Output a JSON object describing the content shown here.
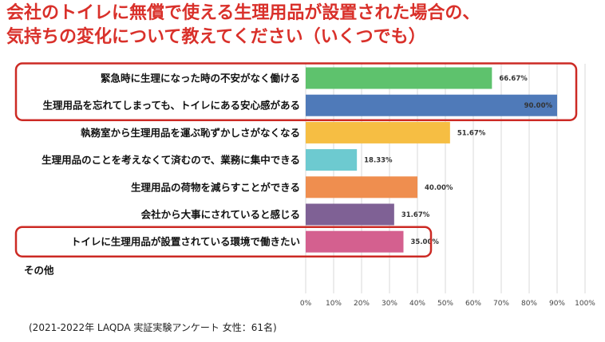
{
  "title": {
    "line1": "会社のトイレに無償で使える生理用品が設置された場合の、",
    "line2": "気持ちの変化について教えてください（いくつでも）"
  },
  "footnote": "(2021-2022年 LAQDA 実証実験アンケート 女性：61名)",
  "colors": {
    "title": "#d9302a",
    "highlight_box": "#cc2a24",
    "grid": "#d9d9d9"
  },
  "chart_data": {
    "type": "bar",
    "orientation": "horizontal",
    "categories": [
      "緊急時に生理になった時の不安がなく働ける",
      "生理用品を忘れてしまっても、トイレにある安心感がある",
      "執務室から生理用品を運ぶ恥ずかしさがなくなる",
      "生理用品のことを考えなくて済むので、業務に集中できる",
      "生理用品の荷物を減らすことができる",
      "会社から大事にされていると感じる",
      "トイレに生理用品が設置されている環境で働きたい",
      "その他"
    ],
    "values": [
      66.67,
      90.0,
      51.67,
      18.33,
      40.0,
      31.67,
      35.0,
      0
    ],
    "value_labels": [
      "66.67%",
      "90.00%",
      "51.67%",
      "18.33%",
      "40.00%",
      "31.67%",
      "35.00%",
      ""
    ],
    "bar_colors": [
      "#5ec26d",
      "#4f7ab9",
      "#f6be43",
      "#6dcad0",
      "#ef8e4f",
      "#7f6195",
      "#d4608f",
      "#cccccc"
    ],
    "xlim": [
      0,
      100
    ],
    "xticks": [
      "0%",
      "10%",
      "20%",
      "30%",
      "40%",
      "50%",
      "60%",
      "70%",
      "80%",
      "90%",
      "100%"
    ],
    "grid": true,
    "highlighted_groups": [
      [
        0,
        1
      ],
      [
        6
      ]
    ]
  }
}
